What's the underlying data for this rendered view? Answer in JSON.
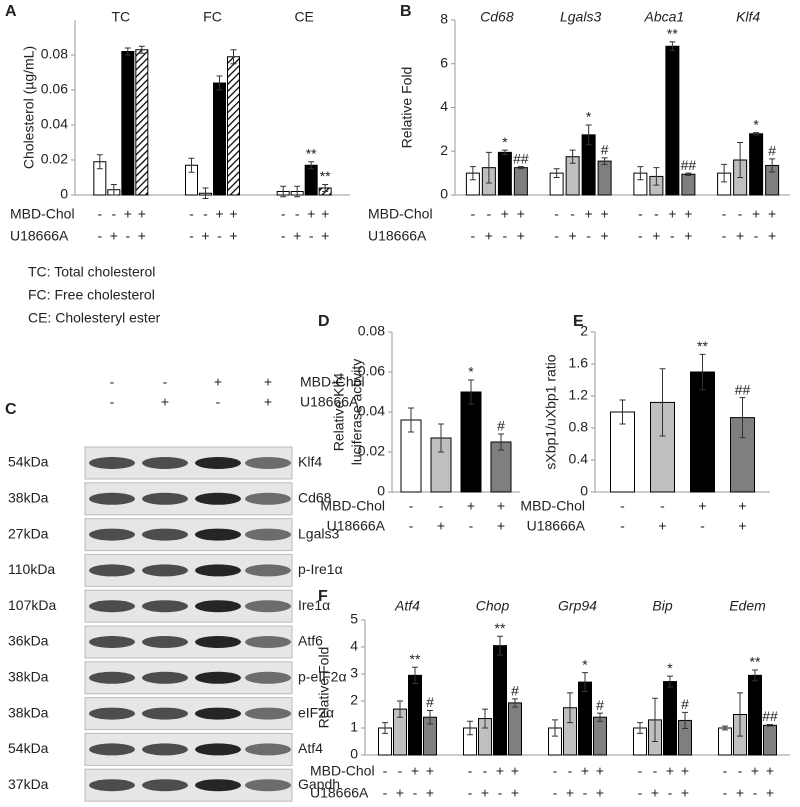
{
  "chart_data": [
    {
      "type": "bar",
      "panel": "A",
      "ylabel": [
        "Cholesterol (µg/mL)"
      ],
      "italic": false,
      "categories": [
        "TC",
        "FC",
        "CE"
      ],
      "ylim": [
        0,
        0.1
      ],
      "yticks": [
        0,
        0.02,
        0.04,
        0.06,
        0.08
      ],
      "series": [
        {
          "color": "#ffffff",
          "values": [
            0.019,
            0.017,
            0.002
          ],
          "errors": [
            0.004,
            0.004,
            0.003
          ],
          "annotations": [
            null,
            null,
            null
          ]
        },
        {
          "color": "#ffffff",
          "values": [
            0.003,
            0.001,
            0.002
          ],
          "errors": [
            0.003,
            0.003,
            0.003
          ],
          "annotations": [
            null,
            null,
            null
          ]
        },
        {
          "color": "#000000",
          "values": [
            0.082,
            0.064,
            0.017
          ],
          "errors": [
            0.002,
            0.004,
            0.002
          ],
          "annotations": [
            null,
            null,
            "**"
          ]
        },
        {
          "color": "#ffffff",
          "hatch": true,
          "values": [
            0.083,
            0.079,
            0.004
          ],
          "errors": [
            0.002,
            0.004,
            0.002
          ],
          "annotations": [
            null,
            null,
            "**"
          ]
        }
      ],
      "conditions": [
        {
          "label": "MBD-Chol",
          "signs": [
            "-",
            "-",
            "+",
            "+"
          ]
        },
        {
          "label": "U18666A",
          "signs": [
            "-",
            "+",
            "-",
            "+"
          ]
        }
      ]
    },
    {
      "type": "bar",
      "panel": "B",
      "ylabel": [
        "Relative Fold"
      ],
      "italic": true,
      "categories": [
        "Cd68",
        "Lgals3",
        "Abca1",
        "Klf4"
      ],
      "ylim": [
        0,
        8
      ],
      "yticks": [
        0,
        2,
        4,
        6,
        8
      ],
      "series": [
        {
          "color": "#ffffff",
          "values": [
            1.0,
            1.0,
            1.0,
            1.0
          ],
          "errors": [
            0.3,
            0.2,
            0.3,
            0.4
          ],
          "annotations": [
            null,
            null,
            null,
            null
          ]
        },
        {
          "color": "#bfbfbf",
          "values": [
            1.25,
            1.75,
            0.85,
            1.6
          ],
          "errors": [
            0.7,
            0.3,
            0.4,
            0.8
          ],
          "annotations": [
            null,
            null,
            null,
            null
          ]
        },
        {
          "color": "#000000",
          "values": [
            1.95,
            2.75,
            6.8,
            2.8
          ],
          "errors": [
            0.1,
            0.45,
            0.2,
            0.05
          ],
          "annotations": [
            "*",
            "*",
            "**",
            "*"
          ]
        },
        {
          "color": "#7f7f7f",
          "values": [
            1.25,
            1.55,
            0.95,
            1.35
          ],
          "errors": [
            0.05,
            0.15,
            0.05,
            0.3
          ],
          "annotations": [
            "##",
            "#",
            "##",
            "#"
          ]
        }
      ],
      "conditions": [
        {
          "label": "MBD-Chol",
          "signs": [
            "-",
            "-",
            "+",
            "+"
          ]
        },
        {
          "label": "U18666A",
          "signs": [
            "-",
            "+",
            "-",
            "+"
          ]
        }
      ]
    },
    {
      "type": "bar",
      "panel": "D",
      "ylabel": [
        "Relative Klf4",
        "luciferase activity"
      ],
      "italic": false,
      "categories": [
        null
      ],
      "ylim": [
        0,
        0.08
      ],
      "yticks": [
        0,
        0.02,
        0.04,
        0.06,
        0.08
      ],
      "series": [
        {
          "color": "#ffffff",
          "values": [
            0.036
          ],
          "errors": [
            0.006
          ],
          "annotations": [
            null
          ]
        },
        {
          "color": "#bfbfbf",
          "values": [
            0.027
          ],
          "errors": [
            0.007
          ],
          "annotations": [
            null
          ]
        },
        {
          "color": "#000000",
          "values": [
            0.05
          ],
          "errors": [
            0.006
          ],
          "annotations": [
            "*"
          ]
        },
        {
          "color": "#7f7f7f",
          "values": [
            0.025
          ],
          "errors": [
            0.004
          ],
          "annotations": [
            "#"
          ]
        }
      ],
      "conditions": [
        {
          "label": "MBD-Chol",
          "signs": [
            "-",
            "-",
            "+",
            "+"
          ]
        },
        {
          "label": "U18666A",
          "signs": [
            "-",
            "+",
            "-",
            "+"
          ]
        }
      ]
    },
    {
      "type": "bar",
      "panel": "E",
      "ylabel": [
        "sXbp1/uXbp1 ratio"
      ],
      "italic": false,
      "categories": [
        null
      ],
      "ylim": [
        0,
        2
      ],
      "yticks": [
        0,
        0.4,
        0.8,
        1.2,
        1.6,
        2
      ],
      "series": [
        {
          "color": "#ffffff",
          "values": [
            1.0
          ],
          "errors": [
            0.15
          ],
          "annotations": [
            null
          ]
        },
        {
          "color": "#bfbfbf",
          "values": [
            1.12
          ],
          "errors": [
            0.42
          ],
          "annotations": [
            null
          ]
        },
        {
          "color": "#000000",
          "values": [
            1.5
          ],
          "errors": [
            0.22
          ],
          "annotations": [
            "**"
          ]
        },
        {
          "color": "#7f7f7f",
          "values": [
            0.93
          ],
          "errors": [
            0.25
          ],
          "annotations": [
            "##"
          ]
        }
      ],
      "conditions": [
        {
          "label": "MBD-Chol",
          "signs": [
            "-",
            "-",
            "+",
            "+"
          ]
        },
        {
          "label": "U18666A",
          "signs": [
            "-",
            "+",
            "-",
            "+"
          ]
        }
      ]
    },
    {
      "type": "bar",
      "panel": "F",
      "ylabel": [
        "Relative Fold"
      ],
      "italic": true,
      "categories": [
        "Atf4",
        "Chop",
        "Grp94",
        "Bip",
        "Edem"
      ],
      "ylim": [
        0,
        5
      ],
      "yticks": [
        0,
        1,
        2,
        3,
        4,
        5
      ],
      "series": [
        {
          "color": "#ffffff",
          "values": [
            1.0,
            1.0,
            1.0,
            1.0,
            1.0
          ],
          "errors": [
            0.2,
            0.25,
            0.3,
            0.2,
            0.07
          ],
          "annotations": [
            null,
            null,
            null,
            null,
            null
          ]
        },
        {
          "color": "#bfbfbf",
          "values": [
            1.7,
            1.35,
            1.75,
            1.3,
            1.5
          ],
          "errors": [
            0.3,
            0.35,
            0.55,
            0.8,
            0.8
          ],
          "annotations": [
            null,
            null,
            null,
            null,
            null
          ]
        },
        {
          "color": "#000000",
          "values": [
            2.95,
            4.05,
            2.7,
            2.72,
            2.95
          ],
          "errors": [
            0.3,
            0.35,
            0.35,
            0.2,
            0.2
          ],
          "annotations": [
            "**",
            "**",
            "*",
            "*",
            "**"
          ]
        },
        {
          "color": "#7f7f7f",
          "values": [
            1.4,
            1.93,
            1.4,
            1.28,
            1.1
          ],
          "errors": [
            0.25,
            0.15,
            0.15,
            0.3,
            0.03
          ],
          "annotations": [
            "#",
            "#",
            "#",
            "#",
            "##"
          ]
        }
      ],
      "conditions": [
        {
          "label": "MBD-Chol",
          "signs": [
            "-",
            "-",
            "+",
            "+"
          ]
        },
        {
          "label": "U18666A",
          "signs": [
            "-",
            "+",
            "-",
            "+"
          ]
        }
      ]
    }
  ],
  "notes": [
    "TC: Total cholesterol",
    "FC: Free cholesterol",
    "CE: Cholesteryl ester"
  ],
  "blot": {
    "panel": "C",
    "conditions": [
      {
        "label": "MBD-Chol",
        "signs": [
          "-",
          "-",
          "+",
          "+"
        ]
      },
      {
        "label": "U18666A",
        "signs": [
          "-",
          "+",
          "-",
          "+"
        ]
      }
    ],
    "rows": [
      {
        "size": "54kDa",
        "protein": "Klf4"
      },
      {
        "size": "38kDa",
        "protein": "Cd68"
      },
      {
        "size": "27kDa",
        "protein": "Lgals3"
      },
      {
        "size": "110kDa",
        "protein": "p-Ire1α"
      },
      {
        "size": "107kDa",
        "protein": "Ire1α"
      },
      {
        "size": "36kDa",
        "protein": "Atf6"
      },
      {
        "size": "38kDa",
        "protein": "p-eIF2α"
      },
      {
        "size": "38kDa",
        "protein": "eIF2α"
      },
      {
        "size": "54kDa",
        "protein": "Atf4"
      },
      {
        "size": "37kDa",
        "protein": "Gapdh"
      }
    ]
  }
}
